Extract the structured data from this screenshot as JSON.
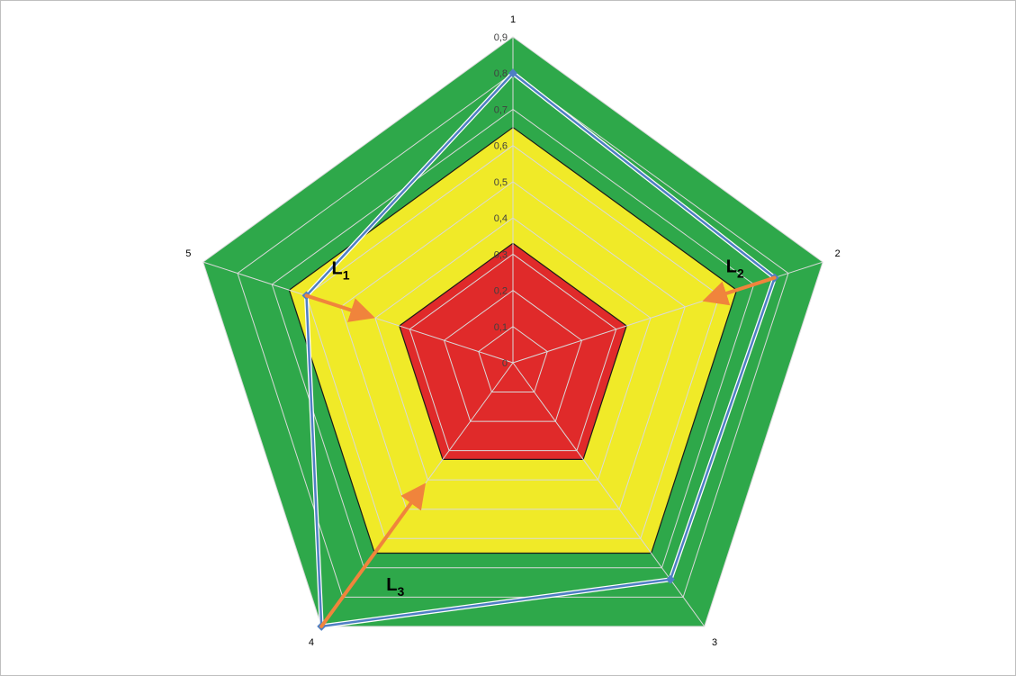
{
  "chart_data": {
    "type": "radar",
    "categories": [
      "1",
      "2",
      "3",
      "4",
      "5"
    ],
    "rlim": [
      0,
      0.9
    ],
    "tick_labels": [
      "0",
      "0,1",
      "0,2",
      "0,3",
      "0,4",
      "0,5",
      "0,6",
      "0,7",
      "0,8",
      "0,9"
    ],
    "bands": [
      {
        "from": 0,
        "to": 0.33,
        "color": "#e02a2a"
      },
      {
        "from": 0.33,
        "to": 0.65,
        "color": "#f0ea28"
      },
      {
        "from": 0.65,
        "to": 0.9,
        "color": "#2ea84a"
      }
    ],
    "series": [
      {
        "values": [
          0.8,
          0.76,
          0.74,
          0.9,
          0.6
        ],
        "color": "#4f7fc4"
      }
    ],
    "grid": true,
    "annotations": [
      {
        "base": "L",
        "sub": "1",
        "from_category": "5",
        "from_value": 0.6,
        "to_value": 0.42
      },
      {
        "base": "L",
        "sub": "2",
        "from_category": "2",
        "from_value": 0.76,
        "to_value": 0.57
      },
      {
        "base": "L",
        "sub": "3",
        "from_category": "4",
        "from_value": 0.9,
        "to_value": 0.43
      }
    ],
    "arrow_color": "#f0843c"
  }
}
